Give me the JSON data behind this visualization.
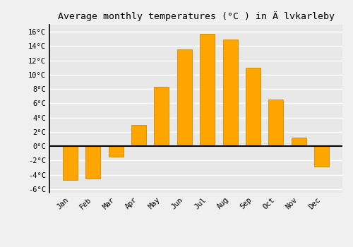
{
  "months": [
    "Jan",
    "Feb",
    "Mar",
    "Apr",
    "May",
    "Jun",
    "Jul",
    "Aug",
    "Sep",
    "Oct",
    "Nov",
    "Dec"
  ],
  "temperatures": [
    -4.7,
    -4.5,
    -1.5,
    3.0,
    8.3,
    13.5,
    15.7,
    14.9,
    11.0,
    6.5,
    1.2,
    -2.8
  ],
  "title": "Average monthly temperatures (°C ) in Ä lvkarleby",
  "bar_color": "#FFA500",
  "bar_edge_color": "#CC8800",
  "ylim": [
    -6.5,
    17.0
  ],
  "yticks": [
    -6,
    -4,
    -2,
    0,
    2,
    4,
    6,
    8,
    10,
    12,
    14,
    16
  ],
  "ytick_labels": [
    "-6°C",
    "-4°C",
    "-2°C",
    "0°C",
    "2°C",
    "4°C",
    "6°C",
    "8°C",
    "10°C",
    "12°C",
    "14°C",
    "16°C"
  ],
  "background_color": "#f0f0f0",
  "plot_bg_color": "#e8e8e8",
  "grid_color": "#ffffff",
  "zero_line_color": "#000000",
  "spine_color": "#000000",
  "title_fontsize": 9.5,
  "tick_fontsize": 7.5,
  "font_family": "monospace",
  "bar_width": 0.65
}
